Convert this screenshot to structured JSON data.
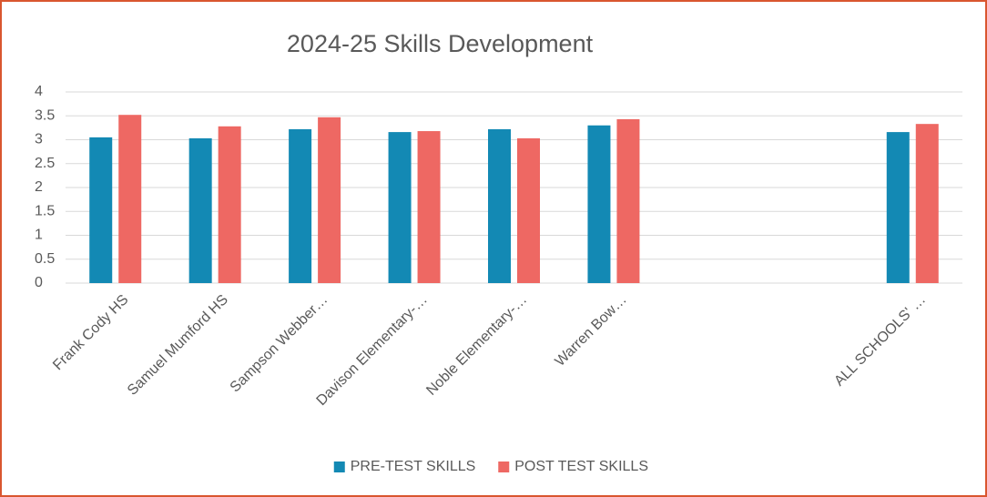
{
  "chart_data": {
    "type": "bar",
    "title": "2024-25  Skills Development",
    "categories": [
      "Frank Cody HS",
      "Samuel Mumford HS",
      "Sampson Webber…",
      "Davison Elementary-…",
      "Noble Elementary-…",
      "Warren Bow…",
      null,
      null,
      "ALL SCHOOLS' …"
    ],
    "series": [
      {
        "name": "PRE-TEST SKILLS",
        "color": "#1389b4",
        "values": [
          3.05,
          3.03,
          3.22,
          3.16,
          3.22,
          3.3,
          null,
          null,
          3.16
        ]
      },
      {
        "name": "POST TEST SKILLS",
        "color": "#ee6863",
        "values": [
          3.52,
          3.28,
          3.47,
          3.18,
          3.03,
          3.43,
          null,
          null,
          3.33
        ]
      }
    ],
    "ylim": [
      0,
      4
    ],
    "yticks": [
      0,
      0.5,
      1,
      1.5,
      2,
      2.5,
      3,
      3.5,
      4
    ],
    "grid": true,
    "legend": "bottom"
  }
}
